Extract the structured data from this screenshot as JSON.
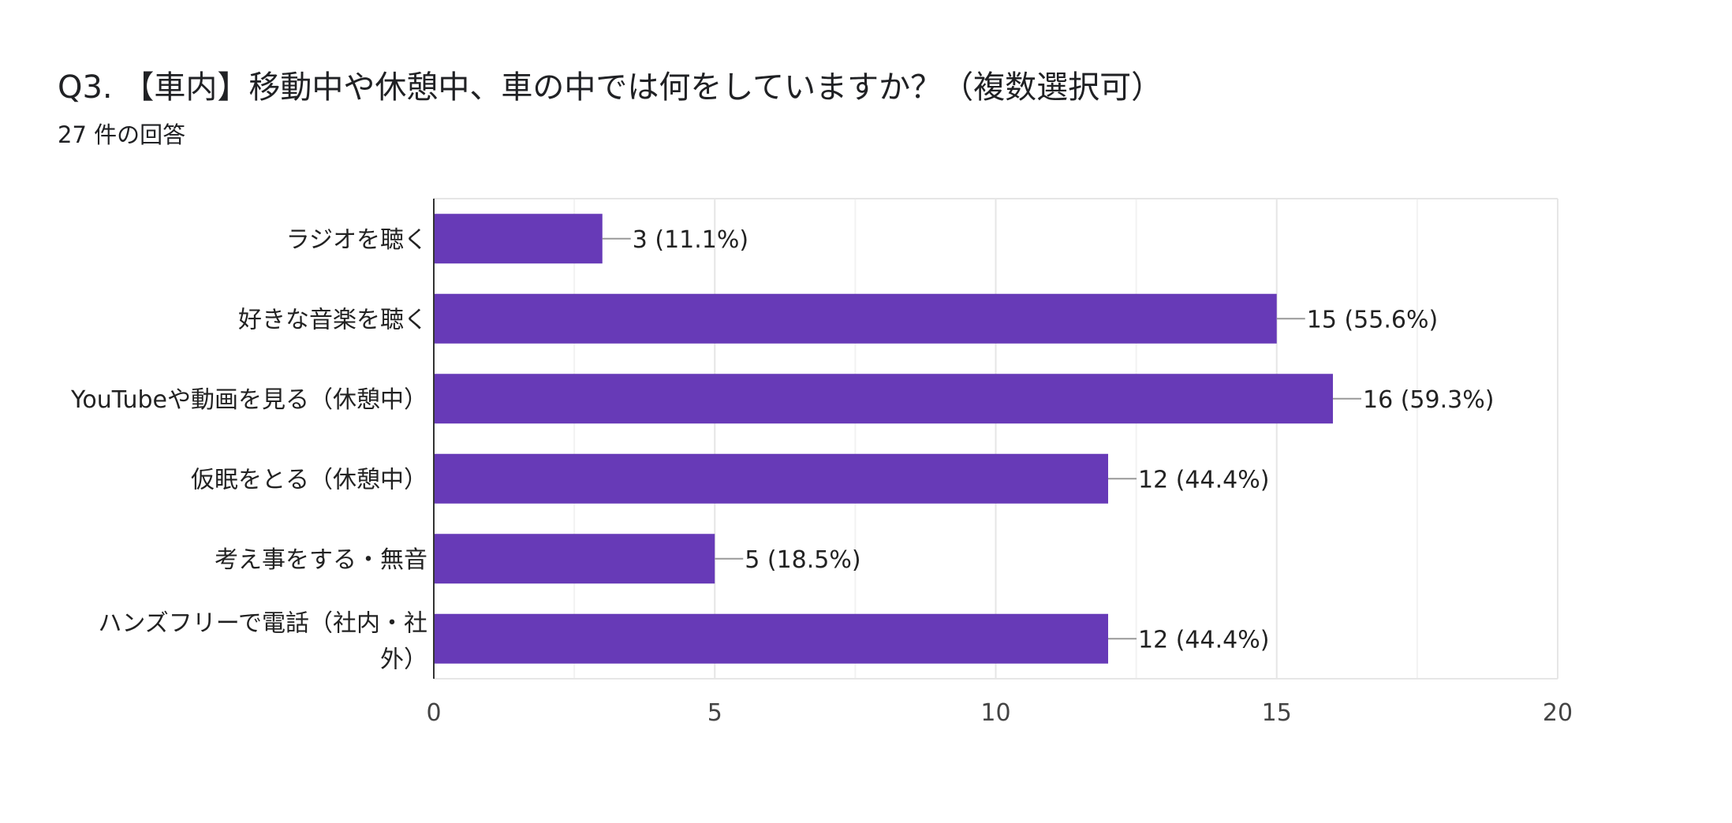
{
  "chart_data": {
    "type": "bar",
    "orientation": "horizontal",
    "title": "Q3. 【車内】移動中や休憩中、車の中では何をしていますか？（複数選択可）",
    "subtitle": "27 件の回答",
    "categories": [
      "ラジオを聴く",
      "好きな音楽を聴く",
      "YouTubeや動画を見る（休憩中）",
      "仮眠をとる（休憩中）",
      "考え事をする・無音",
      "ハンズフリーで電話（社内・社外）"
    ],
    "category_lines": [
      [
        "ラジオを聴く"
      ],
      [
        "好きな音楽を聴く"
      ],
      [
        "YouTubeや動画を見る（休憩中）"
      ],
      [
        "仮眠をとる（休憩中）"
      ],
      [
        "考え事をする・無音"
      ],
      [
        "ハンズフリーで電話（社内・社",
        "外）"
      ]
    ],
    "values": [
      3,
      15,
      16,
      12,
      5,
      12
    ],
    "data_labels": [
      "3 (11.1%)",
      "15 (55.6%)",
      "16 (59.3%)",
      "12 (44.4%)",
      "5 (18.5%)",
      "12 (44.4%)"
    ],
    "xlim": [
      0,
      20
    ],
    "xticks": [
      0,
      5,
      10,
      15,
      20
    ],
    "xtick_labels": [
      "0",
      "5",
      "10",
      "15",
      "20"
    ],
    "grid": true,
    "bar_color": "#673ab7"
  }
}
